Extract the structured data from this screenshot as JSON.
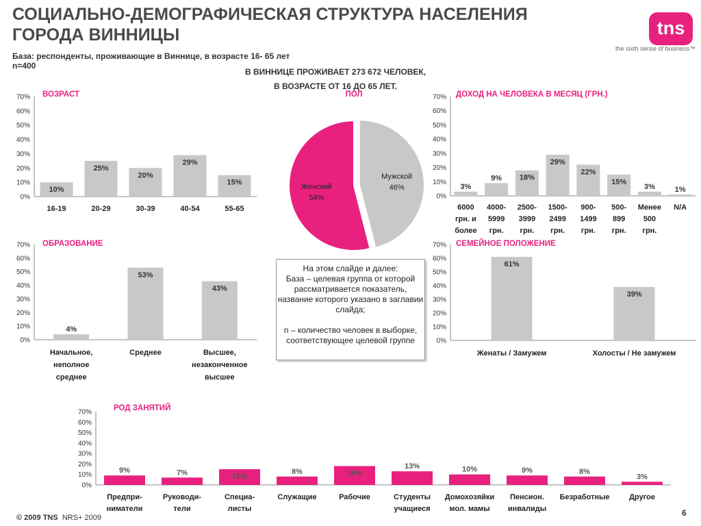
{
  "title": "СОЦИАЛЬНО-ДЕМОГРАФИЧЕСКАЯ СТРУКТУРА НАСЕЛЕНИЯ ГОРОДА ВИННИЦЫ",
  "logo": "tns",
  "tagline": "the sixth sense of business™",
  "base_line1": "База: респонденты, проживающие в Виннице, в возрасте 16- 65 лет",
  "base_line2": "n=400",
  "headline_line1": "В ВИННИЦЕ ПРОЖИВАЕТ 273 672 ЧЕЛОВЕК,",
  "headline_line2": "В ВОЗРАСТЕ ОТ 16 ДО 65 ЛЕТ.",
  "note": {
    "line1": "На этом слайде и далее:",
    "line2": "База – целевая группа от которой рассматривается показатель, название которого указано в заглавии слайда;",
    "line3": "n – количество человек в выборке, соответствующее целевой группе"
  },
  "footer": {
    "copyright": "© 2009 TNS",
    "source": "NRS+ 2009"
  },
  "page_number": "6",
  "colors": {
    "pink": "#e8217f",
    "gray": "#c8c8c8",
    "text": "#333333"
  },
  "chart_data": [
    {
      "id": "age",
      "type": "bar",
      "title": "ВОЗРАСТ",
      "categories": [
        [
          "16-19"
        ],
        [
          "20-29"
        ],
        [
          "30-39"
        ],
        [
          "40-54"
        ],
        [
          "55-65"
        ]
      ],
      "values": [
        10,
        25,
        20,
        29,
        15
      ],
      "labels": [
        "10%",
        "25%",
        "20%",
        "29%",
        "15%"
      ],
      "yticks": [
        "0%",
        "10%",
        "20%",
        "30%",
        "40%",
        "50%",
        "60%",
        "70%"
      ],
      "ylim": [
        0,
        70
      ],
      "color": "gray"
    },
    {
      "id": "gender",
      "type": "pie",
      "title": "ПОЛ",
      "slices": [
        {
          "name": "Женский",
          "value": 54,
          "label": "54%",
          "color": "pink"
        },
        {
          "name": "Мужской",
          "value": 46,
          "label": "46%",
          "color": "gray"
        }
      ]
    },
    {
      "id": "income",
      "type": "bar",
      "title": "ДОХОД НА ЧЕЛОВЕКА В МЕСЯЦ (ГРН.)",
      "categories": [
        [
          "6000",
          "грн. и",
          "более"
        ],
        [
          "4000-",
          "5999",
          "грн."
        ],
        [
          "2500-",
          "3999",
          "грн."
        ],
        [
          "1500-",
          "2499",
          "грн."
        ],
        [
          "900-",
          "1499",
          "грн."
        ],
        [
          "500-",
          "899",
          "грн."
        ],
        [
          "Менее",
          "500",
          "грн."
        ],
        [
          "N/A"
        ]
      ],
      "values": [
        3,
        9,
        18,
        29,
        22,
        15,
        3,
        1
      ],
      "labels": [
        "3%",
        "9%",
        "18%",
        "29%",
        "22%",
        "15%",
        "3%",
        "1%"
      ],
      "yticks": [
        "0%",
        "10%",
        "20%",
        "30%",
        "40%",
        "50%",
        "60%",
        "70%"
      ],
      "ylim": [
        0,
        70
      ],
      "color": "gray"
    },
    {
      "id": "education",
      "type": "bar",
      "title": "ОБРАЗОВАНИЕ",
      "categories": [
        [
          "Начальное,",
          "неполное",
          "среднее"
        ],
        [
          "Среднее"
        ],
        [
          "Высшее,",
          "незаконченное",
          "высшее"
        ]
      ],
      "values": [
        4,
        53,
        43
      ],
      "labels": [
        "4%",
        "53%",
        "43%"
      ],
      "yticks": [
        "0%",
        "10%",
        "20%",
        "30%",
        "40%",
        "50%",
        "60%",
        "70%"
      ],
      "ylim": [
        0,
        70
      ],
      "color": "gray"
    },
    {
      "id": "marital",
      "type": "bar",
      "title": "СЕМЕЙНОЕ ПОЛОЖЕНИЕ",
      "categories": [
        [
          "Женаты / Замужем"
        ],
        [
          "Холосты / Не замужем"
        ]
      ],
      "values": [
        61,
        39
      ],
      "labels": [
        "61%",
        "39%"
      ],
      "yticks": [
        "0%",
        "10%",
        "20%",
        "30%",
        "40%",
        "50%",
        "60%",
        "70%"
      ],
      "ylim": [
        0,
        70
      ],
      "color": "gray"
    },
    {
      "id": "occupation",
      "type": "bar",
      "title": "РОД ЗАНЯТИЙ",
      "categories": [
        [
          "Предпри-",
          "ниматели"
        ],
        [
          "Руководи-",
          "тели"
        ],
        [
          "Специа-",
          "листы"
        ],
        [
          "Служащие"
        ],
        [
          "Рабочие"
        ],
        [
          "Студенты",
          "учащиеся"
        ],
        [
          "Домохозяйки",
          "мол. мамы"
        ],
        [
          "Пенсион.",
          "инвалиды"
        ],
        [
          "Безработные"
        ],
        [
          "Другое"
        ]
      ],
      "values": [
        9,
        7,
        15,
        8,
        18,
        13,
        10,
        9,
        8,
        3
      ],
      "labels": [
        "9%",
        "7%",
        "15%",
        "8%",
        "18%",
        "13%",
        "10%",
        "9%",
        "8%",
        "3%"
      ],
      "yticks": [
        "0%",
        "10%",
        "20%",
        "30%",
        "40%",
        "50%",
        "60%",
        "70%"
      ],
      "ylim": [
        0,
        70
      ],
      "color": "pink"
    }
  ]
}
